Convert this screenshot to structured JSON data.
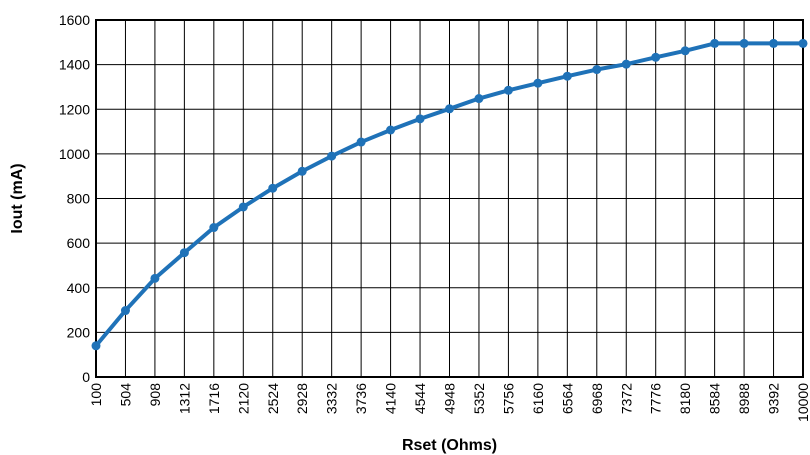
{
  "chart_data": {
    "type": "line",
    "title": "",
    "xlabel": "Rset (Ohms)",
    "ylabel": "Iout (mA)",
    "x": [
      "100",
      "504",
      "908",
      "1312",
      "1716",
      "2120",
      "2524",
      "2928",
      "3332",
      "3736",
      "4140",
      "4544",
      "4948",
      "5352",
      "5756",
      "6160",
      "6564",
      "6968",
      "7372",
      "7776",
      "8180",
      "8584",
      "8988",
      "9392",
      "10000"
    ],
    "series": [
      {
        "values": [
          140,
          298,
          442,
          557,
          670,
          762,
          846,
          922,
          990,
          1053,
          1107,
          1157,
          1202,
          1248,
          1285,
          1317,
          1348,
          1378,
          1402,
          1433,
          1462,
          1495,
          1495,
          1495,
          1495
        ],
        "color": "#1f72b8"
      }
    ],
    "ylim": [
      0,
      1600
    ],
    "yticks": [
      0,
      200,
      400,
      600,
      800,
      1000,
      1200,
      1400,
      1600
    ],
    "grid": true,
    "legend": "none",
    "colors": {
      "line": "#1f72b8",
      "grid": "#000000"
    }
  }
}
